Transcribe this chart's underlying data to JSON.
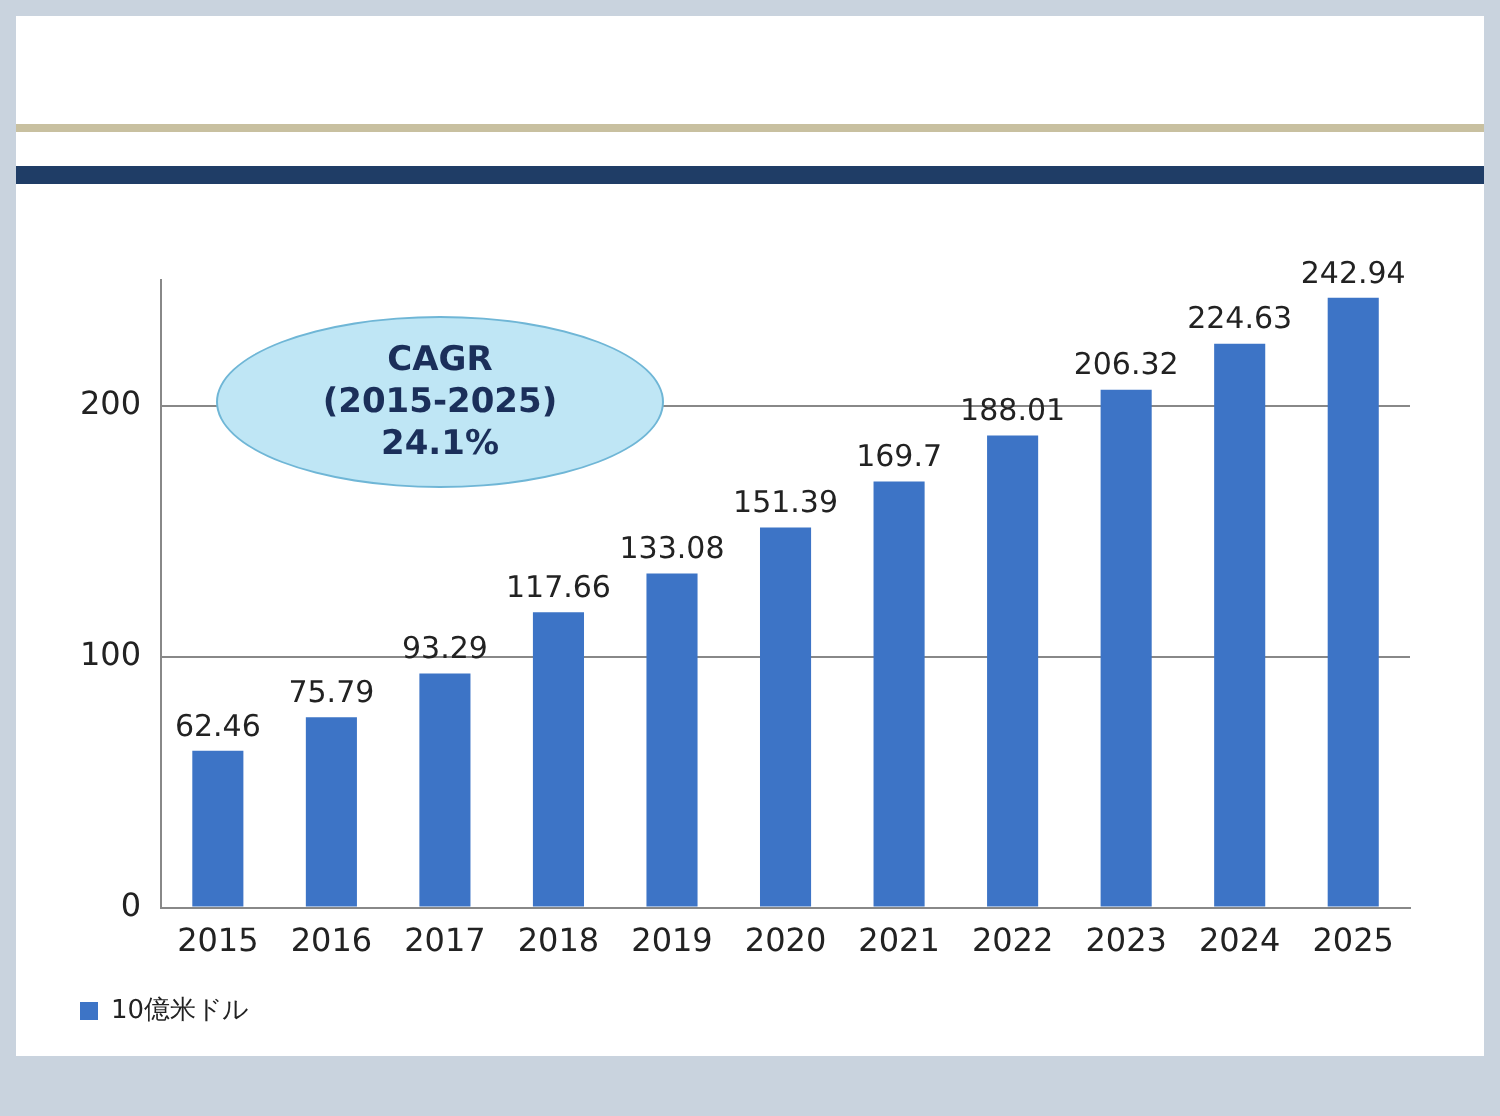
{
  "chart_data": {
    "type": "bar",
    "categories": [
      "2015",
      "2016",
      "2017",
      "2018",
      "2019",
      "2020",
      "2021",
      "2022",
      "2023",
      "2024",
      "2025"
    ],
    "series": [
      {
        "name": "10億米ドル",
        "color": "#3d74c6",
        "values": [
          62.46,
          75.79,
          93.29,
          117.66,
          133.08,
          151.39,
          169.7,
          188.01,
          206.32,
          224.63,
          242.94
        ]
      }
    ],
    "ylim": [
      0,
      250
    ],
    "yticks": [
      0,
      100,
      200
    ],
    "grid": "y",
    "legend": "bottom left",
    "data_labels": true,
    "annotations": [
      "CAGR\n(2015-2025)\n24.1%"
    ]
  }
}
